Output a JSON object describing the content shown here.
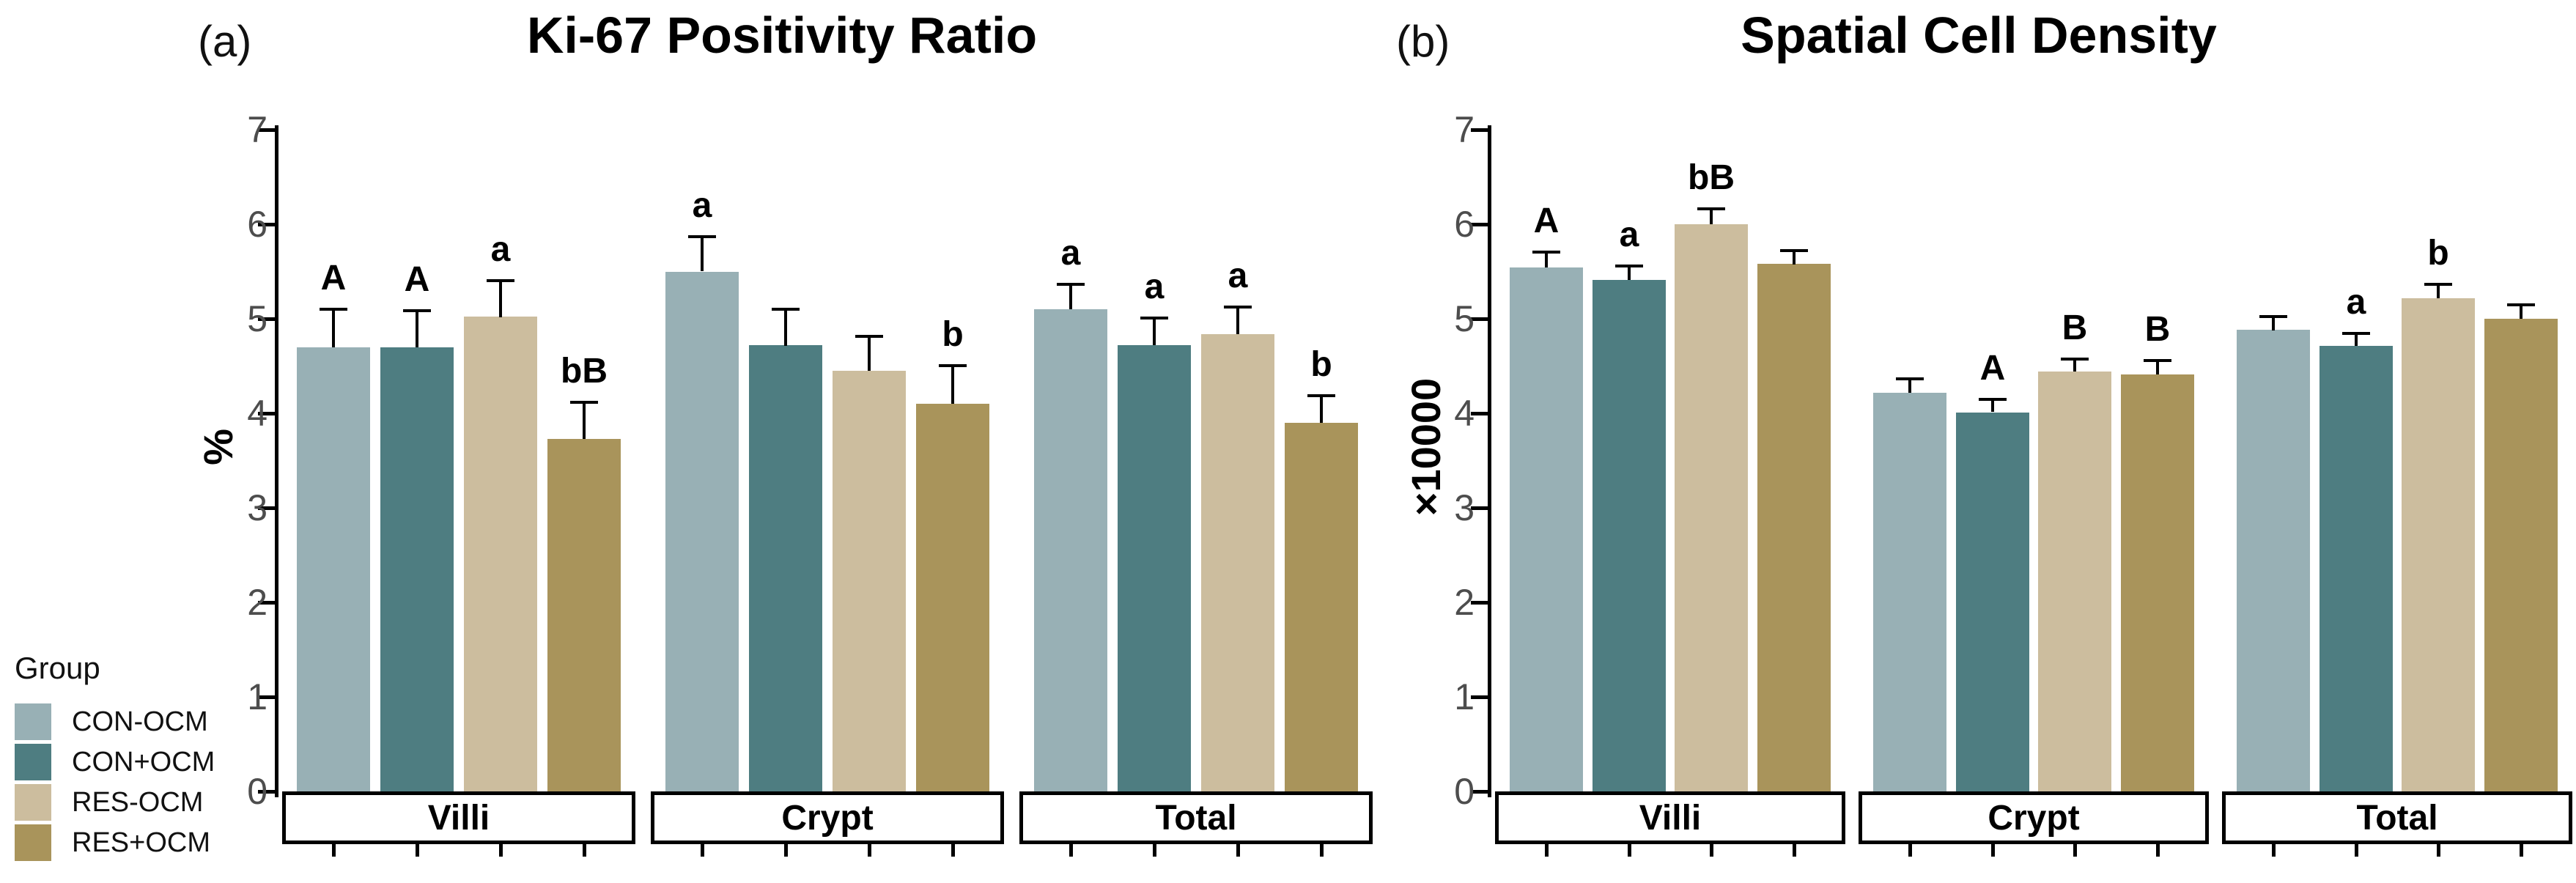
{
  "figure": {
    "background": "#ffffff"
  },
  "legend": {
    "title": "Group",
    "items": [
      {
        "label": "CON-OCM",
        "color": "#98b0b5"
      },
      {
        "label": "CON+OCM",
        "color": "#4e7d81"
      },
      {
        "label": "RES-OCM",
        "color": "#ccbd9e"
      },
      {
        "label": "RES+OCM",
        "color": "#a9945b"
      }
    ]
  },
  "chart_data": [
    {
      "type": "bar",
      "panel_label": "(a)",
      "title": "Ki-67 Positivity Ratio",
      "xlabel": "",
      "ylabel": "%",
      "ylim": [
        0,
        7
      ],
      "yticks": [
        0,
        1,
        2,
        3,
        4,
        5,
        6,
        7
      ],
      "grid": false,
      "legend_position": "bottom-left-of-figure",
      "categories": [
        "Villi",
        "Crypt",
        "Total"
      ],
      "series": [
        {
          "name": "CON-OCM",
          "color": "#98b0b5",
          "values": [
            4.7,
            5.5,
            5.1
          ],
          "errors": [
            0.42,
            0.38,
            0.28
          ],
          "letters": [
            "A",
            "a",
            "a"
          ]
        },
        {
          "name": "CON+OCM",
          "color": "#4e7d81",
          "values": [
            4.7,
            4.72,
            4.72
          ],
          "errors": [
            0.4,
            0.4,
            0.3
          ],
          "letters": [
            "A",
            "",
            "a"
          ]
        },
        {
          "name": "RES-OCM",
          "color": "#ccbd9e",
          "values": [
            5.02,
            4.45,
            4.84
          ],
          "errors": [
            0.4,
            0.38,
            0.3
          ],
          "letters": [
            "a",
            "",
            "a"
          ]
        },
        {
          "name": "RES+OCM",
          "color": "#a9945b",
          "values": [
            3.73,
            4.1,
            3.9
          ],
          "errors": [
            0.4,
            0.42,
            0.3
          ],
          "letters": [
            "bB",
            "b",
            "b"
          ]
        }
      ]
    },
    {
      "type": "bar",
      "panel_label": "(b)",
      "title": "Spatial Cell Density",
      "xlabel": "",
      "ylabel": "×10000",
      "ylim": [
        0,
        7
      ],
      "yticks": [
        0,
        1,
        2,
        3,
        4,
        5,
        6,
        7
      ],
      "grid": false,
      "categories": [
        "Villi",
        "Crypt",
        "Total"
      ],
      "series": [
        {
          "name": "CON-OCM",
          "color": "#98b0b5",
          "values": [
            5.54,
            4.22,
            4.88
          ],
          "errors": [
            0.18,
            0.16,
            0.16
          ],
          "letters": [
            "A",
            "",
            ""
          ]
        },
        {
          "name": "CON+OCM",
          "color": "#4e7d81",
          "values": [
            5.41,
            4.01,
            4.71
          ],
          "errors": [
            0.16,
            0.15,
            0.15
          ],
          "letters": [
            "a",
            "A",
            "a"
          ]
        },
        {
          "name": "RES-OCM",
          "color": "#ccbd9e",
          "values": [
            6.0,
            4.44,
            5.22
          ],
          "errors": [
            0.18,
            0.15,
            0.16
          ],
          "letters": [
            "bB",
            "B",
            "b"
          ]
        },
        {
          "name": "RES+OCM",
          "color": "#a9945b",
          "values": [
            5.58,
            4.41,
            5.0
          ],
          "errors": [
            0.16,
            0.16,
            0.16
          ],
          "letters": [
            "",
            "B",
            ""
          ]
        }
      ]
    }
  ]
}
